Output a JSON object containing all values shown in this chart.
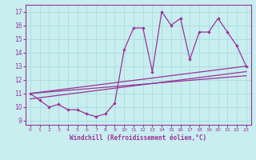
{
  "xlabel": "Windchill (Refroidissement éolien,°C)",
  "background_color": "#c8eef0",
  "grid_color": "#aadddd",
  "line_color": "#993399",
  "x_ticks": [
    0,
    1,
    2,
    3,
    4,
    5,
    6,
    7,
    8,
    9,
    10,
    11,
    12,
    13,
    14,
    15,
    16,
    17,
    18,
    19,
    20,
    21,
    22,
    23
  ],
  "y_ticks": [
    9,
    10,
    11,
    12,
    13,
    14,
    15,
    16,
    17
  ],
  "ylim": [
    8.7,
    17.5
  ],
  "xlim": [
    -0.5,
    23.5
  ],
  "series1_x": [
    0,
    1,
    2,
    3,
    4,
    5,
    6,
    7,
    8,
    9,
    10,
    11,
    12,
    13,
    14,
    15,
    16,
    17,
    18,
    19,
    20,
    21,
    22,
    23
  ],
  "series1_y": [
    11.0,
    10.5,
    10.0,
    10.2,
    9.8,
    9.8,
    9.5,
    9.3,
    9.5,
    10.3,
    14.2,
    15.8,
    15.8,
    12.6,
    17.0,
    16.0,
    16.5,
    13.5,
    15.5,
    15.5,
    16.5,
    15.5,
    14.5,
    13.0
  ],
  "series2_x": [
    0,
    23
  ],
  "series2_y": [
    11.0,
    13.0
  ],
  "series3_x": [
    0,
    23
  ],
  "series3_y": [
    10.6,
    12.6
  ],
  "series4_x": [
    0,
    23
  ],
  "series4_y": [
    11.0,
    12.3
  ]
}
